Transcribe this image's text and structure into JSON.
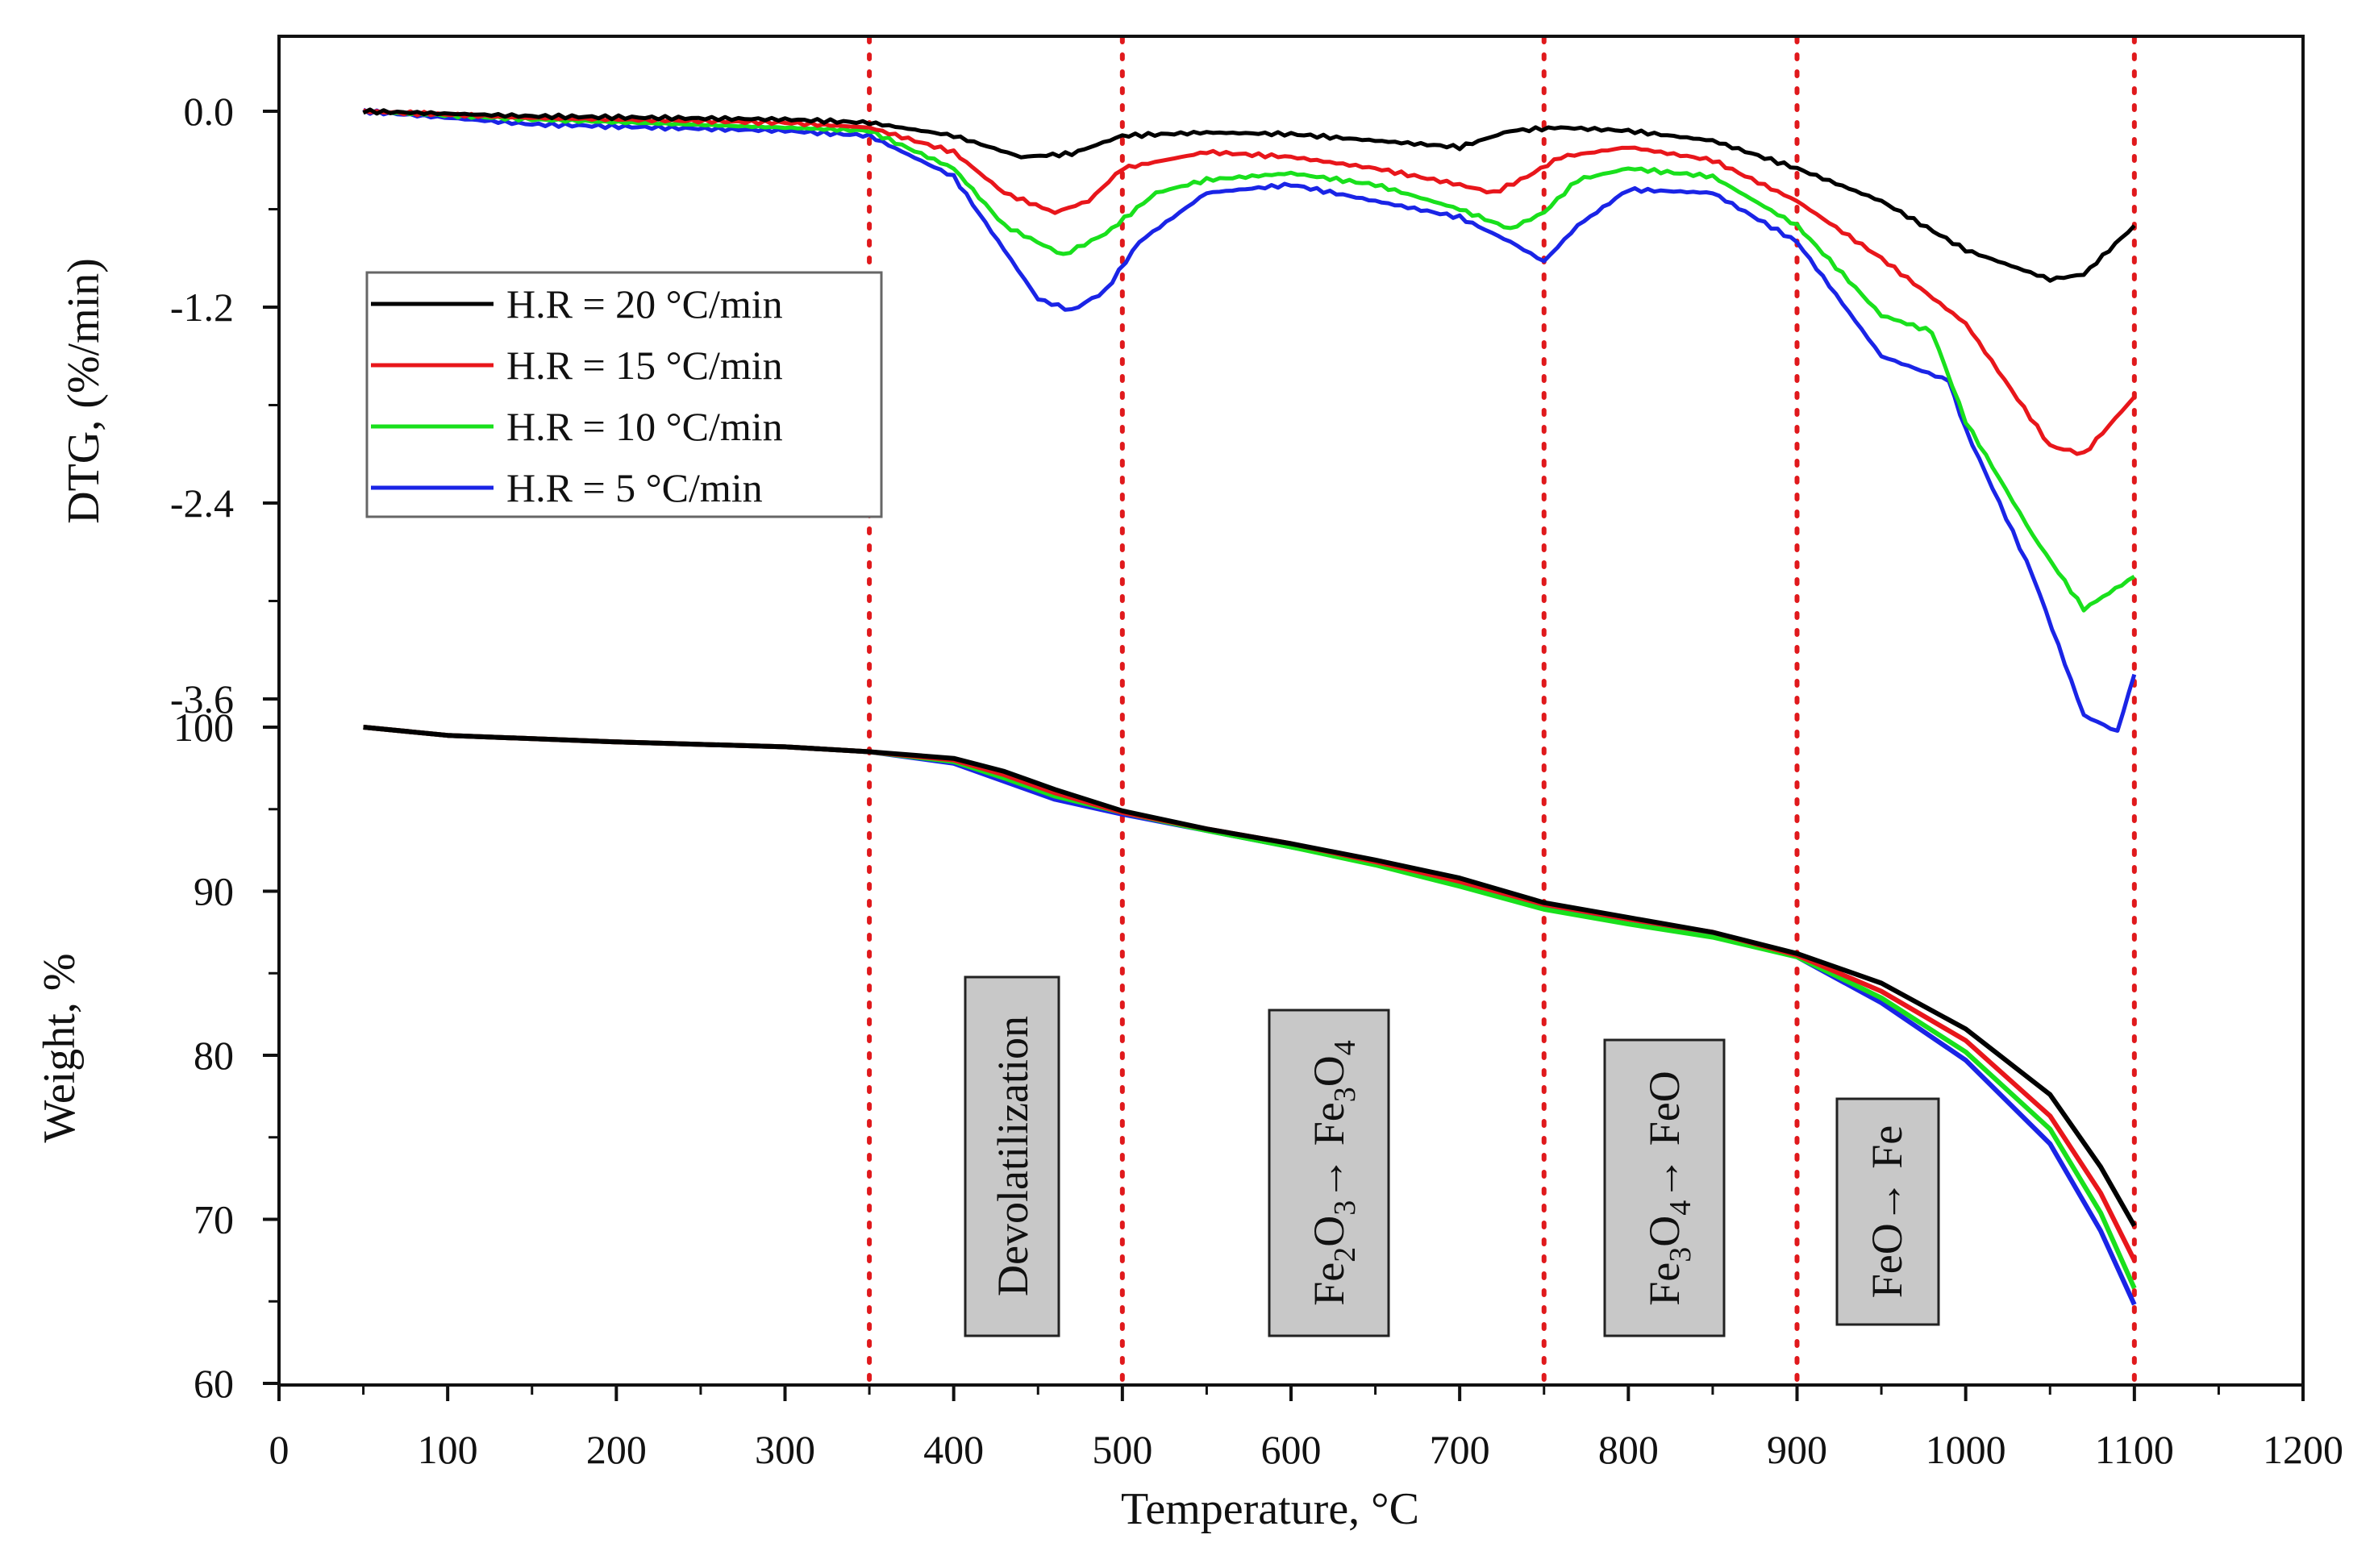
{
  "chart_data": [
    {
      "type": "line",
      "panel": "top",
      "ylabel": "DTG, (%/min)",
      "ylim": [
        -4.3,
        0.55
      ],
      "yticks": [
        0.0,
        -1.2,
        -2.4,
        -3.6
      ],
      "ytick_labels": [
        "0.0",
        "-1.2",
        "-2.4",
        "-3.6"
      ],
      "legend": {
        "placement": "left",
        "entries": [
          {
            "label": "H.R = 20 °C/min",
            "color": "#000000"
          },
          {
            "label": "H.R = 15 °C/min",
            "color": "#e8161b"
          },
          {
            "label": "H.R = 10 °C/min",
            "color": "#19e01c"
          },
          {
            "label": "H.R = 5 °C/min",
            "color": "#1a24e6"
          }
        ]
      },
      "series": [
        {
          "name": "H.R = 20 °C/min",
          "color": "#000000",
          "x": [
            50,
            150,
            300,
            350,
            400,
            440,
            470,
            500,
            550,
            600,
            650,
            700,
            730,
            760,
            800,
            850,
            900,
            950,
            1000,
            1050,
            1070,
            1100
          ],
          "y": [
            0,
            -0.03,
            -0.05,
            -0.07,
            -0.15,
            -0.28,
            -0.26,
            -0.15,
            -0.13,
            -0.14,
            -0.18,
            -0.22,
            -0.12,
            -0.1,
            -0.12,
            -0.18,
            -0.35,
            -0.55,
            -0.85,
            -1.03,
            -1.0,
            -0.7
          ]
        },
        {
          "name": "H.R = 15 °C/min",
          "color": "#e8161b",
          "x": [
            50,
            150,
            300,
            350,
            400,
            430,
            460,
            480,
            500,
            550,
            600,
            650,
            700,
            720,
            740,
            760,
            800,
            850,
            900,
            950,
            1000,
            1050,
            1070,
            1100
          ],
          "y": [
            0,
            -0.04,
            -0.07,
            -0.1,
            -0.25,
            -0.5,
            -0.62,
            -0.55,
            -0.35,
            -0.25,
            -0.28,
            -0.35,
            -0.45,
            -0.5,
            -0.4,
            -0.28,
            -0.22,
            -0.3,
            -0.55,
            -0.9,
            -1.3,
            -2.05,
            -2.1,
            -1.75
          ]
        },
        {
          "name": "H.R = 10 °C/min",
          "color": "#19e01c",
          "x": [
            50,
            150,
            300,
            350,
            400,
            430,
            465,
            490,
            520,
            550,
            600,
            650,
            700,
            730,
            750,
            770,
            800,
            850,
            900,
            950,
            980,
            1000,
            1040,
            1070,
            1100
          ],
          "y": [
            0,
            -0.05,
            -0.1,
            -0.12,
            -0.35,
            -0.7,
            -0.88,
            -0.75,
            -0.5,
            -0.42,
            -0.38,
            -0.45,
            -0.6,
            -0.72,
            -0.62,
            -0.42,
            -0.35,
            -0.4,
            -0.7,
            -1.25,
            -1.35,
            -1.9,
            -2.6,
            -3.05,
            -2.85
          ]
        },
        {
          "name": "H.R = 5 °C/min",
          "color": "#1a24e6",
          "x": [
            50,
            150,
            300,
            350,
            400,
            430,
            450,
            470,
            490,
            510,
            550,
            600,
            650,
            700,
            730,
            750,
            770,
            800,
            850,
            900,
            950,
            990,
            1000,
            1040,
            1070,
            1090,
            1100
          ],
          "y": [
            0,
            -0.08,
            -0.12,
            -0.15,
            -0.4,
            -0.85,
            -1.15,
            -1.22,
            -1.1,
            -0.8,
            -0.5,
            -0.45,
            -0.55,
            -0.65,
            -0.8,
            -0.92,
            -0.7,
            -0.48,
            -0.5,
            -0.8,
            -1.5,
            -1.65,
            -1.95,
            -2.85,
            -3.7,
            -3.8,
            -3.45
          ]
        }
      ]
    },
    {
      "type": "line",
      "panel": "bottom",
      "xlabel": "Temperature, °C",
      "ylabel": "Weight, %",
      "xlim": [
        0,
        1200
      ],
      "ylim": [
        60,
        100
      ],
      "xticks": [
        0,
        100,
        200,
        300,
        400,
        500,
        600,
        700,
        800,
        900,
        1000,
        1100,
        1200
      ],
      "xtick_labels": [
        "0",
        "100",
        "200",
        "300",
        "400",
        "500",
        "600",
        "700",
        "800",
        "900",
        "1000",
        "1100",
        "1200"
      ],
      "yticks": [
        60,
        70,
        80,
        90,
        100
      ],
      "ytick_labels": [
        "60",
        "70",
        "80",
        "90",
        "100"
      ],
      "vertical_dotted_lines_x": [
        350,
        500,
        750,
        900,
        1100
      ],
      "annotations": [
        {
          "text": "Devolatilization"
        },
        {
          "text": "Fe2O3→ Fe3O4"
        },
        {
          "text": "Fe3O4→ FeO"
        },
        {
          "text": "FeO→ Fe"
        }
      ],
      "series": [
        {
          "name": "H.R = 20 °C/min",
          "color": "#000000",
          "x": [
            50,
            100,
            200,
            300,
            350,
            400,
            430,
            460,
            500,
            550,
            600,
            650,
            700,
            750,
            800,
            850,
            900,
            950,
            1000,
            1050,
            1080,
            1100
          ],
          "y": [
            100,
            99.5,
            99.1,
            98.8,
            98.5,
            98.1,
            97.3,
            96.2,
            94.9,
            93.8,
            92.9,
            91.9,
            90.8,
            89.3,
            88.4,
            87.5,
            86.2,
            84.4,
            81.6,
            77.6,
            73.2,
            69.6
          ]
        },
        {
          "name": "H.R = 15 °C/min",
          "color": "#e8161b",
          "x": [
            50,
            100,
            200,
            300,
            350,
            400,
            430,
            460,
            500,
            550,
            600,
            650,
            700,
            750,
            800,
            850,
            900,
            950,
            1000,
            1050,
            1080,
            1100
          ],
          "y": [
            100,
            99.5,
            99.1,
            98.8,
            98.5,
            98.0,
            97.1,
            96.0,
            94.8,
            93.8,
            92.9,
            91.8,
            90.6,
            89.2,
            88.3,
            87.5,
            86.1,
            83.9,
            80.9,
            76.3,
            71.6,
            67.5
          ]
        },
        {
          "name": "H.R = 10 °C/min",
          "color": "#19e01c",
          "x": [
            50,
            100,
            200,
            300,
            350,
            400,
            430,
            460,
            500,
            550,
            600,
            650,
            700,
            750,
            800,
            850,
            900,
            950,
            1000,
            1050,
            1080,
            1100
          ],
          "y": [
            100,
            99.5,
            99.1,
            98.8,
            98.5,
            97.9,
            96.9,
            95.8,
            94.8,
            93.7,
            92.7,
            91.6,
            90.3,
            88.9,
            88.0,
            87.2,
            86.0,
            83.5,
            80.2,
            75.5,
            70.4,
            65.8
          ]
        },
        {
          "name": "H.R = 5 °C/min",
          "color": "#1a24e6",
          "x": [
            50,
            100,
            200,
            300,
            350,
            400,
            430,
            460,
            500,
            550,
            600,
            650,
            700,
            750,
            800,
            850,
            900,
            950,
            1000,
            1050,
            1080,
            1100
          ],
          "y": [
            100,
            99.5,
            99.1,
            98.8,
            98.5,
            97.8,
            96.7,
            95.6,
            94.7,
            93.7,
            92.7,
            91.7,
            90.4,
            89.1,
            88.3,
            87.4,
            86.0,
            83.2,
            79.7,
            74.6,
            69.3,
            64.8
          ]
        }
      ]
    }
  ],
  "legend_labels": [
    "H.R = 20 °C/min",
    "H.R = 15 °C/min",
    "H.R = 10 °C/min",
    "H.R = 5 °C/min"
  ],
  "annot": {
    "devol": "Devolatilization",
    "a1": "Fe",
    "a1s1": "2",
    "a2": "O",
    "a2s1": "3",
    "a3": "→ Fe",
    "a3s1": "3",
    "a4": "O",
    "a4s1": "4",
    "b1": "Fe",
    "b1s1": "3",
    "b2": "O",
    "b2s1": "4",
    "b3": "→ FeO",
    "c1": "FeO→ Fe"
  },
  "labels": {
    "dtg_ylabel": "DTG, (%/min)",
    "weight_ylabel": "Weight, %",
    "xlabel": "Temperature, °C"
  }
}
